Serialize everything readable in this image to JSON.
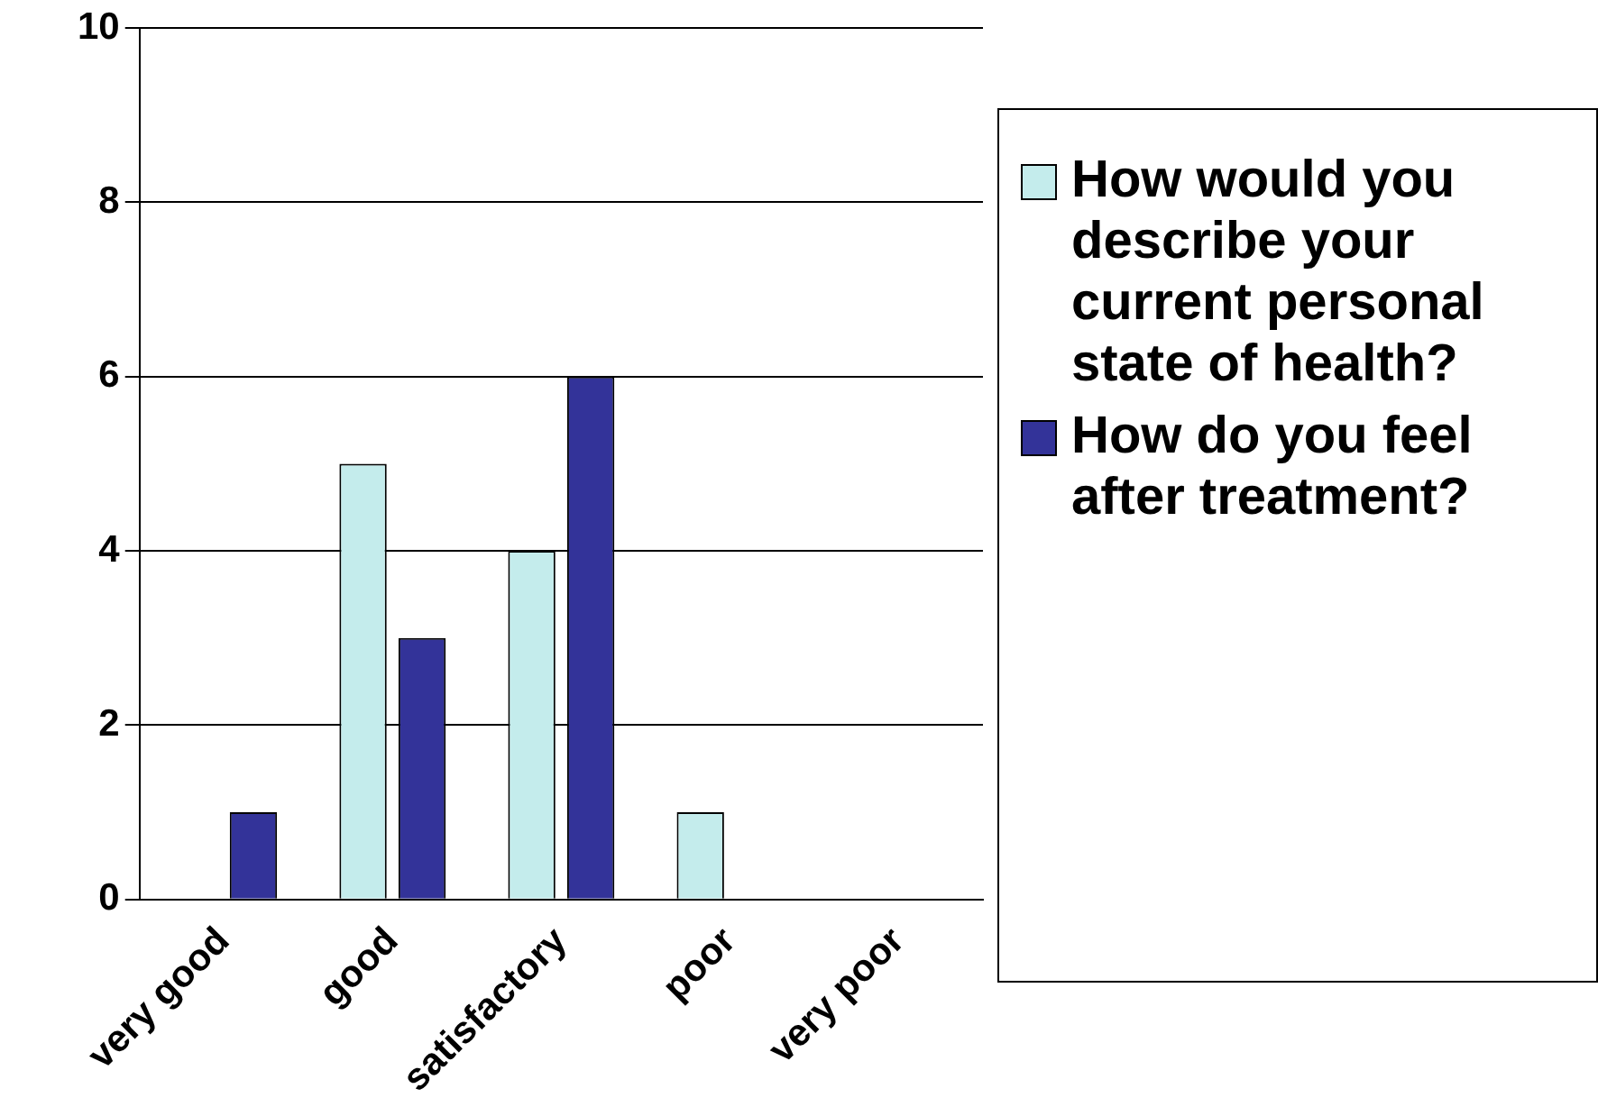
{
  "chart_data": {
    "type": "bar",
    "categories": [
      "very good",
      "good",
      "satisfactory",
      "poor",
      "very poor"
    ],
    "series": [
      {
        "name": "How would you describe your current personal state of health?",
        "color": "#c4ecec",
        "values": [
          0,
          5,
          4,
          1,
          0
        ]
      },
      {
        "name": "How do you feel after treatment?",
        "color": "#333399",
        "values": [
          1,
          3,
          6,
          0,
          0
        ]
      }
    ],
    "ylim": [
      0,
      10
    ],
    "yticks": [
      0,
      2,
      4,
      6,
      8,
      10
    ],
    "grid": "y",
    "legend": "right"
  }
}
